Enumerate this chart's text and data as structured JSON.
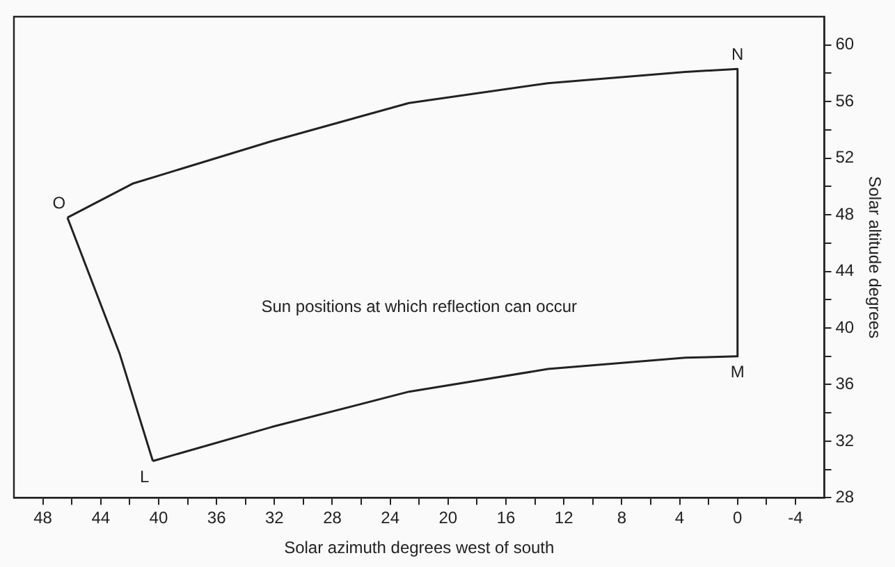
{
  "chart_data": {
    "type": "line",
    "xlabel": "Solar azimuth degrees west of south",
    "ylabel": "Solar altitude degrees",
    "series": [
      {
        "color": "#222222",
        "x": [
          46.3,
          41.8,
          32.2,
          22.7,
          13.1,
          3.6,
          0
        ],
        "values": [
          47.8,
          50.2,
          53.2,
          55.9,
          57.3,
          58.1,
          58.3
        ]
      },
      {
        "color": "#222222",
        "x": [
          0,
          0
        ],
        "values": [
          58.3,
          38.0
        ]
      },
      {
        "color": "#222222",
        "x": [
          0,
          3.6,
          13.1,
          22.7,
          32.2,
          40.4
        ],
        "values": [
          38.0,
          37.9,
          37.1,
          35.5,
          33.0,
          30.6
        ]
      },
      {
        "color": "#222222",
        "x": [
          40.4,
          42.7,
          46.3
        ],
        "values": [
          30.6,
          38.2,
          47.8
        ]
      }
    ],
    "annotations": [
      {
        "text": "O",
        "x": 46.3,
        "y": 47.8
      },
      {
        "text": "N",
        "x": 0,
        "y": 58.3
      },
      {
        "text": "M",
        "x": 0,
        "y": 38.0
      },
      {
        "text": "L",
        "x": 40.4,
        "y": 30.6
      },
      "Sun positions at which reflection can occur"
    ],
    "xlim": [
      50,
      -6
    ],
    "xticks": [
      48,
      {
        "value": 46,
        "label": null
      },
      44,
      {
        "value": 42,
        "label": null
      },
      40,
      {
        "value": 38,
        "label": null
      },
      36,
      {
        "value": 34,
        "label": null
      },
      32,
      {
        "value": 30,
        "label": null
      },
      28,
      {
        "value": 26,
        "label": null
      },
      24,
      {
        "value": 22,
        "label": null
      },
      20,
      {
        "value": 18,
        "label": null
      },
      16,
      {
        "value": 14,
        "label": null
      },
      12,
      {
        "value": 10,
        "label": null
      },
      8,
      {
        "value": 6,
        "label": null
      },
      4,
      {
        "value": 2,
        "label": null
      },
      0,
      {
        "value": -2,
        "label": null
      },
      {
        "value": -4,
        "label": "-4"
      }
    ],
    "ylim": [
      28,
      62
    ],
    "yticks": [
      28,
      {
        "value": 30,
        "label": null
      },
      32,
      {
        "value": 34,
        "label": null
      },
      36,
      {
        "value": 38,
        "label": null
      },
      40,
      {
        "value": 42,
        "label": null
      },
      44,
      {
        "value": 46,
        "label": null
      },
      48,
      {
        "value": 50,
        "label": null
      },
      52,
      {
        "value": 54,
        "label": null
      },
      56,
      {
        "value": 58,
        "label": null
      },
      60
    ],
    "grid": false,
    "legend": false,
    "marker": "none",
    "line_style": "solid"
  }
}
